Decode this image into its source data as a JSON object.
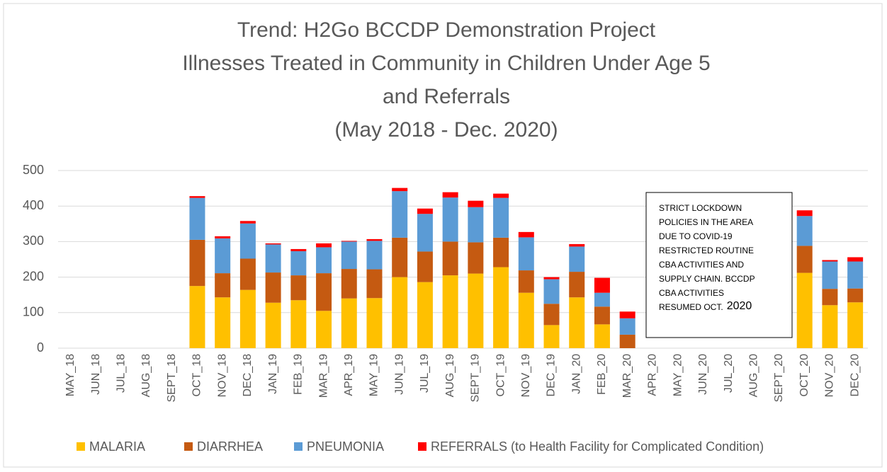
{
  "chart_data": {
    "type": "stacked_bar",
    "title": [
      "Trend: H2Go BCCDP Demonstration Project",
      "Illnesses Treated in Community in Children Under Age 5",
      "and Referrals",
      "(May 2018 - Dec. 2020)"
    ],
    "categories": [
      "MAY_18",
      "JUN_18",
      "JUL_18",
      "AUG_18",
      "SEPT_18",
      "OCT_18",
      "NOV_18",
      "DEC_18",
      "JAN_19",
      "FEB_19",
      "MAR_19",
      "APR_19",
      "MAY_19",
      "JUN_19",
      "JUL_19",
      "AUG_19",
      "SEPT_19",
      "OCT_19",
      "NOV_19",
      "DEC_19",
      "JAN_20",
      "FEB_20",
      "MAR_20",
      "APR_20",
      "MAY_20",
      "JUN_20",
      "JUL_20",
      "AUG_20",
      "SEPT_20",
      "OCT_20",
      "NOV_20",
      "DEC_20"
    ],
    "series": [
      {
        "name": "MALARIA",
        "color": "#FFC000",
        "values": [
          null,
          null,
          null,
          null,
          null,
          175,
          143,
          164,
          128,
          135,
          105,
          140,
          141,
          200,
          186,
          205,
          210,
          228,
          156,
          65,
          143,
          67,
          0,
          null,
          null,
          null,
          null,
          null,
          null,
          212,
          121,
          129
        ]
      },
      {
        "name": "DIARRHEA",
        "color": "#C55A11",
        "values": [
          null,
          null,
          null,
          null,
          null,
          130,
          68,
          88,
          85,
          70,
          106,
          83,
          81,
          111,
          86,
          95,
          88,
          83,
          63,
          60,
          72,
          50,
          38,
          null,
          null,
          null,
          null,
          null,
          null,
          76,
          46,
          39
        ]
      },
      {
        "name": "PNEUMONIA",
        "color": "#5B9BD5",
        "values": [
          null,
          null,
          null,
          null,
          null,
          118,
          98,
          99,
          79,
          68,
          73,
          77,
          80,
          131,
          106,
          124,
          99,
          112,
          93,
          69,
          71,
          39,
          46,
          null,
          null,
          null,
          null,
          null,
          null,
          84,
          77,
          76
        ]
      },
      {
        "name": "REFERRALS (to Health Facility for Complicated Condition)",
        "color": "#FF0000",
        "values": [
          null,
          null,
          null,
          null,
          null,
          5,
          6,
          7,
          3,
          6,
          11,
          2,
          5,
          9,
          15,
          15,
          18,
          12,
          15,
          6,
          7,
          42,
          19,
          null,
          null,
          null,
          null,
          null,
          null,
          16,
          4,
          12
        ]
      }
    ],
    "ylim": [
      0,
      500
    ],
    "yticks": [
      0,
      100,
      200,
      300,
      400,
      500
    ],
    "grid": true,
    "legend": "bottom",
    "annotation": {
      "lines": [
        "STRICT LOCKDOWN",
        "POLICIES IN THE AREA",
        "DUE TO COVID-19",
        "RESTRICTED ROUTINE",
        "CBA ACTIVITIES AND",
        "SUPPLY CHAIN. BCCDP",
        "CBA ACTIVITIES",
        "RESUMED OCT."
      ],
      "emphasis": "2020"
    }
  }
}
